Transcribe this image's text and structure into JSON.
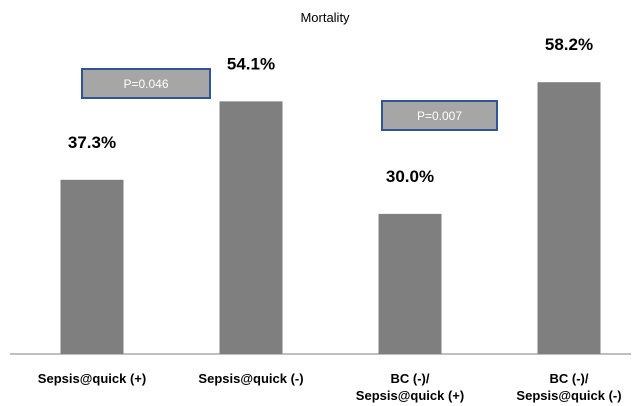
{
  "chart_data": {
    "type": "bar",
    "title": "Mortality",
    "categories": [
      [
        "Sepsis@quick (+)"
      ],
      [
        "Sepsis@quick (-)"
      ],
      [
        "BC (-)/",
        "Sepsis@quick (+)"
      ],
      [
        "BC (-)/",
        "Sepsis@quick (-)"
      ]
    ],
    "values": [
      37.3,
      54.1,
      30.0,
      58.2
    ],
    "data_labels": [
      "37.3%",
      "54.1%",
      "30.0%",
      "58.2%"
    ],
    "ylim": [
      0,
      70
    ],
    "grid": false,
    "legend": "none",
    "annotations": [
      {
        "text": "P=0.046",
        "between": [
          0,
          1
        ]
      },
      {
        "text": "P=0.007",
        "between": [
          2,
          3
        ]
      }
    ],
    "colors": {
      "bar": "#7f7f7f",
      "pbox_fill": "#a6a6a6",
      "pbox_border": "#2f5597",
      "axis": "#7f7f7f"
    }
  }
}
